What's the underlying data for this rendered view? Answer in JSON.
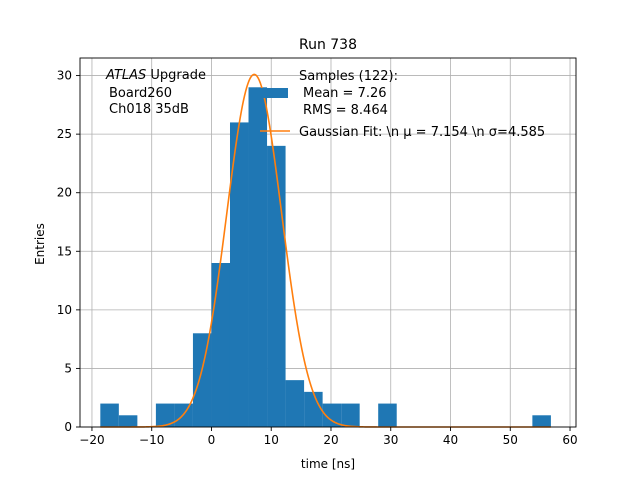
{
  "chart_data": {
    "type": "bar",
    "title": "Run 738",
    "xlabel": "time [ns]",
    "ylabel": "Entries",
    "xlim": [
      -22,
      61
    ],
    "ylim": [
      0,
      31.5
    ],
    "xticks": [
      -20,
      -10,
      0,
      10,
      20,
      30,
      40,
      50,
      60
    ],
    "yticks": [
      0,
      5,
      10,
      15,
      20,
      25,
      30
    ],
    "grid": true,
    "annotation": {
      "line1_italic": "ATLAS",
      "line1_rest": " Upgrade",
      "line2": "Board260",
      "line3": "Ch018 35dB"
    },
    "legend": {
      "placement": "top-right",
      "hist_lines": [
        "Samples (122):",
        "Mean = 7.26",
        "RMS = 8.464"
      ],
      "fit_label": "Gaussian Fit: \\n μ = 7.154 \\n σ=4.585"
    },
    "histogram": {
      "color": "#1f77b4",
      "bins": [
        {
          "x0": -18.6,
          "x1": -15.5,
          "count": 2
        },
        {
          "x0": -15.5,
          "x1": -12.4,
          "count": 1
        },
        {
          "x0": -12.4,
          "x1": -9.3,
          "count": 0
        },
        {
          "x0": -9.3,
          "x1": -6.2,
          "count": 2
        },
        {
          "x0": -6.2,
          "x1": -3.1,
          "count": 2
        },
        {
          "x0": -3.1,
          "x1": 0.0,
          "count": 8
        },
        {
          "x0": 0.0,
          "x1": 3.1,
          "count": 14
        },
        {
          "x0": 3.1,
          "x1": 6.2,
          "count": 26
        },
        {
          "x0": 6.2,
          "x1": 9.3,
          "count": 29
        },
        {
          "x0": 9.3,
          "x1": 12.4,
          "count": 24
        },
        {
          "x0": 12.4,
          "x1": 15.5,
          "count": 4
        },
        {
          "x0": 15.5,
          "x1": 18.6,
          "count": 3
        },
        {
          "x0": 18.6,
          "x1": 21.7,
          "count": 2
        },
        {
          "x0": 21.7,
          "x1": 24.8,
          "count": 2
        },
        {
          "x0": 24.8,
          "x1": 27.9,
          "count": 0
        },
        {
          "x0": 27.9,
          "x1": 31.0,
          "count": 2
        },
        {
          "x0": 53.7,
          "x1": 56.8,
          "count": 1
        }
      ]
    },
    "fit": {
      "color": "#ff7f0e",
      "mu": 7.154,
      "sigma": 4.585,
      "amplitude": 30.1,
      "x_range": [
        -18.6,
        56.8
      ]
    }
  }
}
